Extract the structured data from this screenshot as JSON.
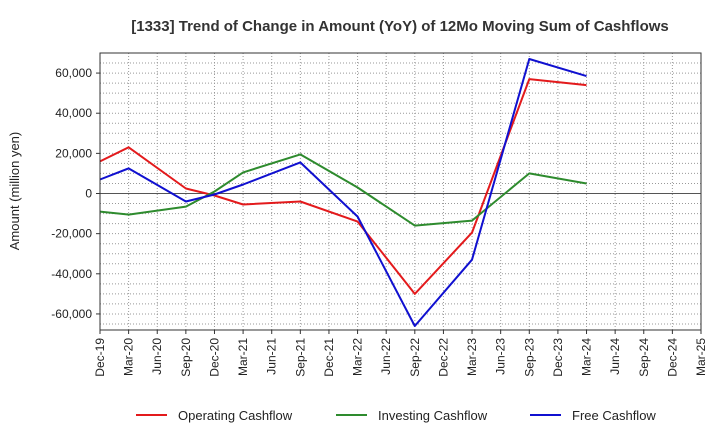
{
  "chart_data": {
    "type": "line",
    "title": "[1333]  Trend of Change in Amount (YoY) of 12Mo Moving Sum of Cashflows",
    "xlabel": "",
    "ylabel": "Amount (million yen)",
    "ylim": [
      -68000,
      70000
    ],
    "yticks": [
      60000,
      40000,
      20000,
      0,
      -20000,
      -40000,
      -60000
    ],
    "ytick_labels": [
      "60,000",
      "40,000",
      "20,000",
      "0",
      "-20,000",
      "-40,000",
      "-60,000"
    ],
    "categories": [
      "Dec-19",
      "Mar-20",
      "Jun-20",
      "Sep-20",
      "Dec-20",
      "Mar-21",
      "Jun-21",
      "Sep-21",
      "Dec-21",
      "Mar-22",
      "Jun-22",
      "Sep-22",
      "Dec-22",
      "Mar-23",
      "Jun-23",
      "Sep-23",
      "Dec-23",
      "Mar-24",
      "Jun-24",
      "Sep-24",
      "Dec-24",
      "Mar-25"
    ],
    "grid": true,
    "legend_position": "bottom",
    "series": [
      {
        "name": "Operating Cashflow",
        "color": "#e31a1c",
        "values": [
          16000,
          23000,
          null,
          2500,
          -1000,
          -5500,
          null,
          -4000,
          null,
          -14000,
          null,
          -50000,
          null,
          -19500,
          null,
          57000,
          null,
          54000,
          null,
          null,
          null,
          null
        ]
      },
      {
        "name": "Investing Cashflow",
        "color": "#2e8b2e",
        "values": [
          -9000,
          -10500,
          null,
          -6500,
          1000,
          10500,
          null,
          19500,
          null,
          3000,
          null,
          -16000,
          null,
          -13500,
          null,
          10000,
          null,
          5000,
          null,
          null,
          null,
          null
        ]
      },
      {
        "name": "Free Cashflow",
        "color": "#1010d0",
        "values": [
          7000,
          12500,
          null,
          -4000,
          -500,
          4500,
          null,
          15500,
          null,
          -11500,
          null,
          -66000,
          null,
          -33000,
          null,
          67000,
          null,
          58500,
          null,
          null,
          null,
          null
        ]
      }
    ]
  }
}
